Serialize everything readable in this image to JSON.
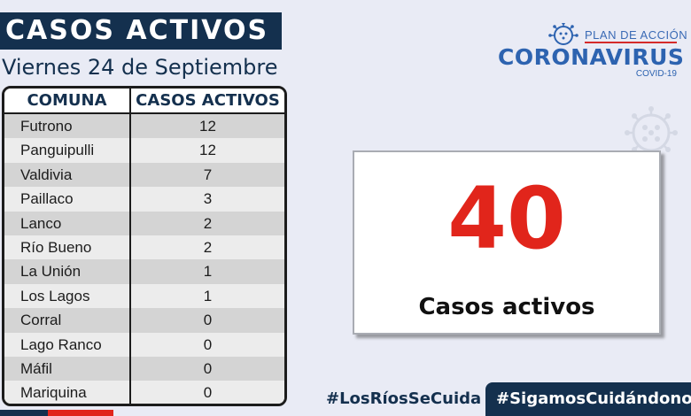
{
  "header": {
    "title": "CASOS ACTIVOS",
    "date": "Viernes 24 de Septiembre"
  },
  "table": {
    "columns": [
      "COMUNA",
      "CASOS ACTIVOS"
    ],
    "rows": [
      {
        "comuna": "Futrono",
        "casos": "12"
      },
      {
        "comuna": "Panguipulli",
        "casos": "12"
      },
      {
        "comuna": "Valdivia",
        "casos": "7"
      },
      {
        "comuna": "Paillaco",
        "casos": "3"
      },
      {
        "comuna": "Lanco",
        "casos": "2"
      },
      {
        "comuna": "Río Bueno",
        "casos": "2"
      },
      {
        "comuna": "La Unión",
        "casos": "1"
      },
      {
        "comuna": "Los Lagos",
        "casos": "1"
      },
      {
        "comuna": "Corral",
        "casos": "0"
      },
      {
        "comuna": "Lago Ranco",
        "casos": "0"
      },
      {
        "comuna": "Máfil",
        "casos": "0"
      },
      {
        "comuna": "Mariquina",
        "casos": "0"
      }
    ]
  },
  "logo": {
    "plan": "PLAN DE ACCIÓN",
    "main": "CORONAVIRUS",
    "sub": "COVID-19",
    "icon": "coronavirus-icon"
  },
  "summary": {
    "total": "40",
    "label": "Casos activos"
  },
  "hashtags": {
    "primary": "#LosRíosSeCuida",
    "secondary": "#SigamosCuidándonos"
  },
  "colors": {
    "navy": "#14304e",
    "accent_red": "#e1251b",
    "brand_blue": "#2d63b0",
    "background": "#e9ebf5"
  }
}
